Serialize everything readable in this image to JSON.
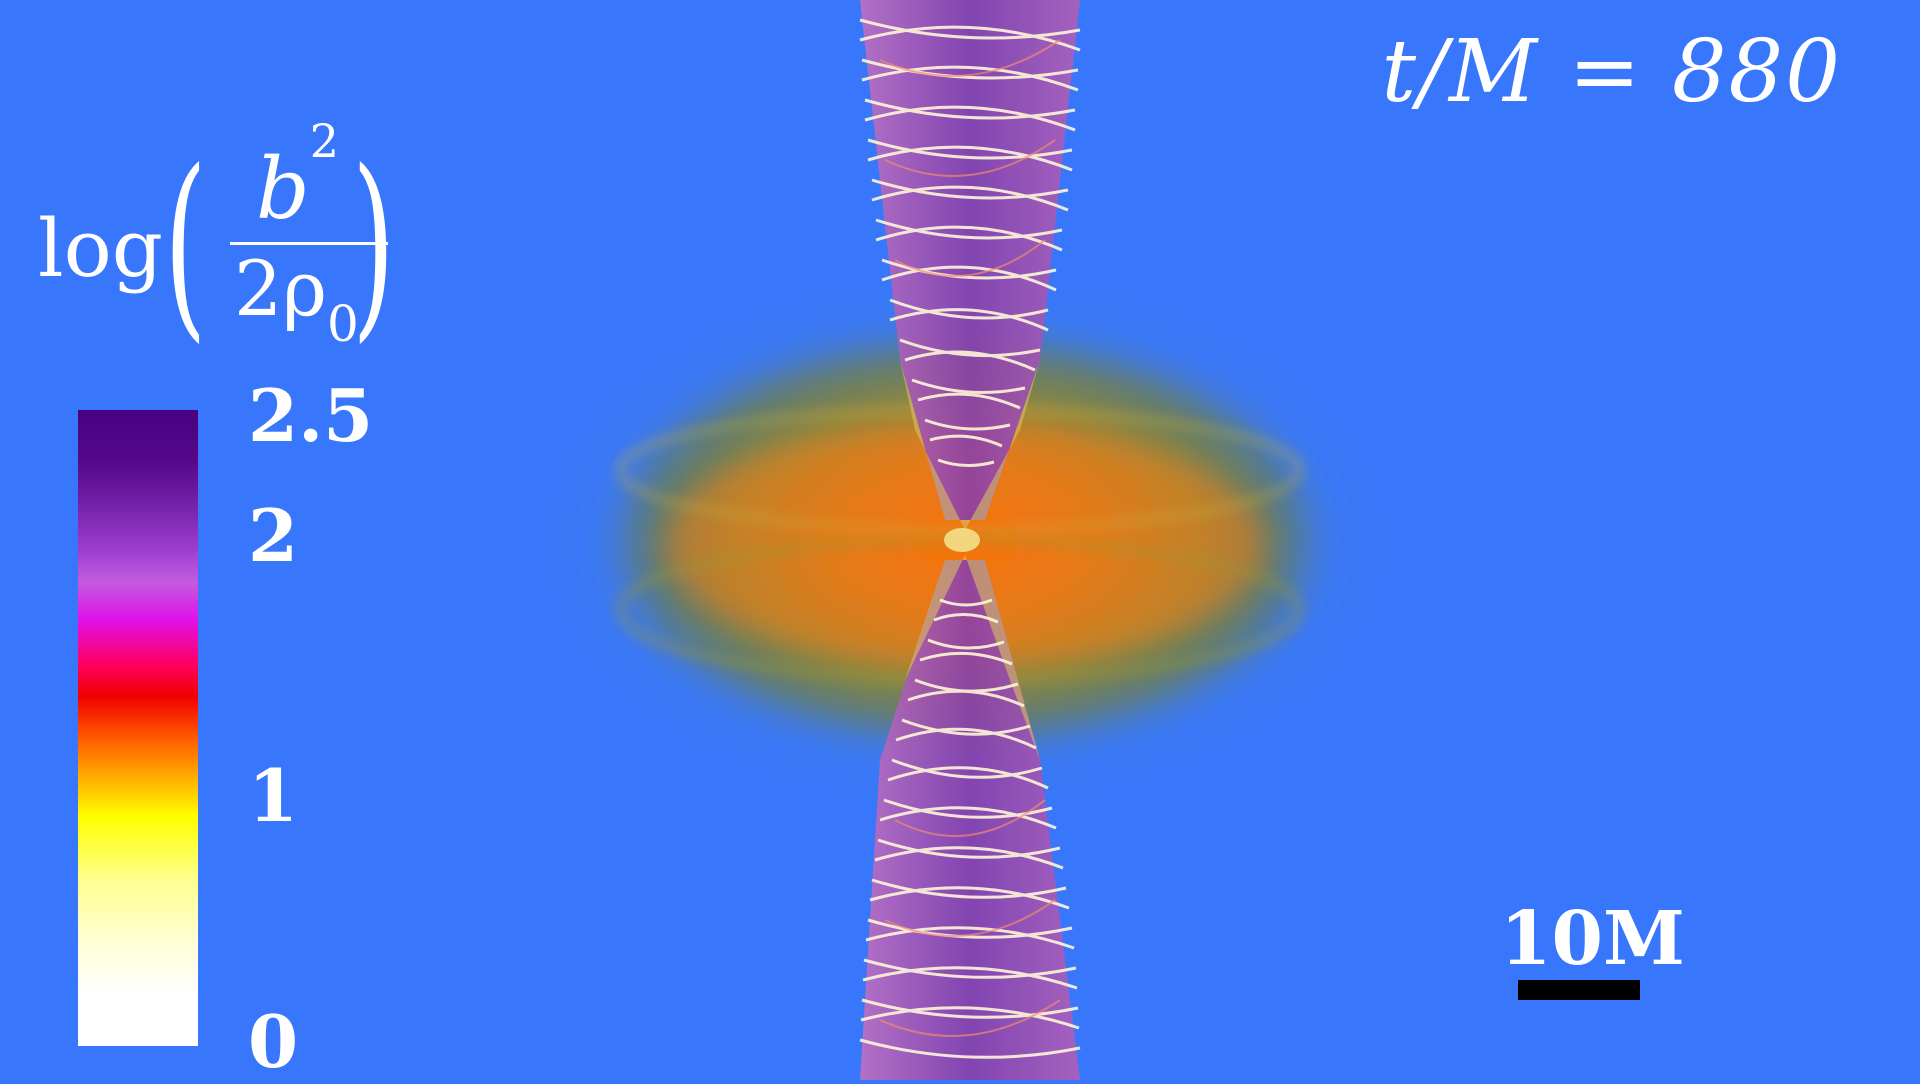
{
  "time": {
    "label": "t/M = 880"
  },
  "colorbar": {
    "title": {
      "prefix": "log",
      "numerator": "b",
      "numerator_exp": "2",
      "denominator": "2ρ",
      "denominator_sub": "0"
    },
    "ticks": [
      "2.5",
      "2",
      "1",
      "0"
    ]
  },
  "scale": {
    "label": "10M"
  }
}
